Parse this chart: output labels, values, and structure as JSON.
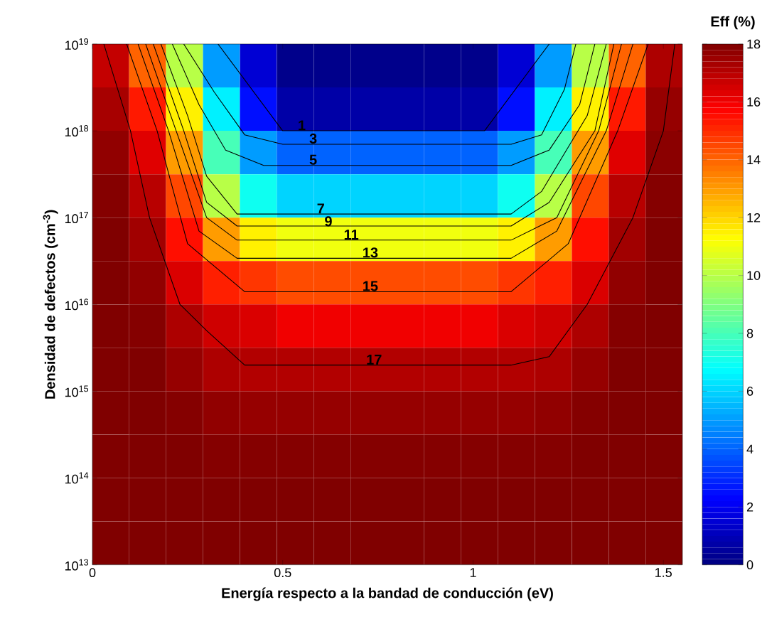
{
  "chart_data": {
    "type": "heatmap",
    "xlabel": "Energía respecto a la bandad de conducción (eV)",
    "ylabel": "Densidad de defectos (cm$^{-3}$)",
    "clabel": "Eff (%)",
    "log": "y",
    "xlim": [
      0,
      1.55
    ],
    "xticks": [
      0,
      0.5,
      1,
      1.5
    ],
    "ylim": [
      10000000000000.0,
      1e+19
    ],
    "yticks": [
      {
        "value": 10000000000000.0,
        "label": "10$^{13}$"
      },
      {
        "value": 100000000000000.0,
        "label": "10$^{14}$"
      },
      {
        "value": 1000000000000000.0,
        "label": "10$^{15}$"
      },
      {
        "value": 1e+16,
        "label": "10$^{16}$"
      },
      {
        "value": 1e+17,
        "label": "10$^{17}$"
      },
      {
        "value": 1e+18,
        "label": "10$^{18}$"
      },
      {
        "value": 1e+19,
        "label": "10$^{19}$"
      }
    ],
    "clim": [
      0,
      18
    ],
    "cticks": [
      0,
      2,
      4,
      6,
      8,
      10,
      12,
      14,
      16,
      18
    ],
    "x": [
      0.048,
      0.145,
      0.242,
      0.339,
      0.436,
      0.533,
      0.63,
      0.727,
      0.823,
      0.92,
      1.017,
      1.114,
      1.211,
      1.308,
      1.405,
      1.502
    ],
    "y": [
      5.62e+18,
      1.78e+18,
      5.62e+17,
      1.78e+17,
      5.62e+16,
      1.78e+16,
      5620000000000000.0,
      1780000000000000.0,
      562000000000000.0,
      178000000000000.0,
      56200000000000.0,
      17800000000000.0
    ],
    "cells": [
      [
        16.8,
        14,
        10,
        5,
        1.5,
        0.2,
        0.2,
        0.2,
        0.2,
        0.2,
        0.2,
        1.5,
        5,
        10,
        14,
        17.2
      ],
      [
        17.3,
        15.3,
        11.5,
        6.5,
        2.5,
        0.7,
        0.7,
        0.7,
        0.7,
        0.7,
        0.7,
        2.5,
        6.5,
        11.5,
        15.3,
        17.6
      ],
      [
        17.7,
        16.3,
        13,
        8,
        5,
        4,
        4,
        4,
        4,
        4,
        4,
        5,
        8,
        13,
        16.3,
        17.8
      ],
      [
        17.9,
        17,
        14.5,
        10,
        7,
        6,
        6,
        6,
        6,
        6,
        6,
        7,
        10,
        14.5,
        17,
        17.9
      ],
      [
        18,
        17.4,
        15.5,
        13,
        11.5,
        11,
        11,
        11,
        11,
        11,
        11,
        11.5,
        13,
        15.5,
        17.4,
        18
      ],
      [
        18,
        17.7,
        16.4,
        15.2,
        14.8,
        14.4,
        14.4,
        14.4,
        14.4,
        14.4,
        14.4,
        14.8,
        15.2,
        16.4,
        17.7,
        18
      ],
      [
        18,
        17.9,
        17.2,
        16.6,
        16.4,
        16,
        16,
        16,
        16,
        16,
        16,
        16.4,
        16.6,
        17.2,
        17.9,
        18
      ],
      [
        18,
        18,
        17.6,
        17.2,
        17.1,
        17.1,
        17.1,
        17.1,
        17.1,
        17.1,
        17.1,
        17.1,
        17.2,
        17.6,
        18,
        18
      ],
      [
        18,
        18,
        17.9,
        17.7,
        17.6,
        17.6,
        17.6,
        17.6,
        17.6,
        17.6,
        17.6,
        17.6,
        17.7,
        17.9,
        18,
        18
      ],
      [
        18,
        18,
        18,
        17.9,
        17.9,
        17.9,
        17.9,
        17.9,
        17.9,
        17.9,
        17.9,
        17.9,
        17.9,
        18,
        18,
        18
      ],
      [
        18,
        18,
        18,
        18,
        18,
        18,
        18,
        18,
        18,
        18,
        18,
        18,
        18,
        18,
        18,
        18
      ],
      [
        18,
        18,
        18,
        18,
        18,
        18,
        18,
        18,
        18,
        18,
        18,
        18,
        18,
        18,
        18,
        18
      ]
    ],
    "series": [
      {
        "type": "line",
        "color": "#000000",
        "x": [
          0.33,
          0.5,
          1.03,
          1.2
        ],
        "values": [
          1e+19,
          1e+18,
          1e+18,
          1e+19
        ]
      },
      {
        "type": "line",
        "color": "#000000",
        "x": [
          0.24,
          0.32,
          0.4,
          0.5,
          1.1,
          1.18,
          1.24,
          1.27
        ],
        "values": [
          1e+19,
          2.8e+18,
          9e+17,
          7e+17,
          7e+17,
          9e+17,
          3e+18,
          1e+19
        ]
      },
      {
        "type": "line",
        "color": "#000000",
        "x": [
          0.21,
          0.28,
          0.35,
          0.45,
          1.1,
          1.2,
          1.28,
          1.32
        ],
        "values": [
          1e+19,
          2e+18,
          6e+17,
          4e+17,
          4e+17,
          6e+17,
          2e+18,
          1e+19
        ]
      },
      {
        "type": "line",
        "color": "#000000",
        "x": [
          0.18,
          0.25,
          0.3,
          0.38,
          1.1,
          1.18,
          1.3,
          1.35
        ],
        "values": [
          1e+19,
          1.5e+18,
          3e+17,
          1.1e+17,
          1.1e+17,
          2e+17,
          1.5e+18,
          1e+19
        ]
      },
      {
        "type": "line",
        "color": "#000000",
        "x": [
          0.16,
          0.24,
          0.3,
          0.38,
          1.1,
          1.2,
          1.32,
          1.37
        ],
        "values": [
          1e+19,
          1e+18,
          1.5e+17,
          8e+16,
          8e+16,
          1.5e+17,
          1e+18,
          1e+19
        ]
      },
      {
        "type": "line",
        "color": "#000000",
        "x": [
          0.14,
          0.22,
          0.3,
          0.38,
          1.1,
          1.22,
          1.33,
          1.39
        ],
        "values": [
          1e+19,
          1e+18,
          1e+17,
          5.5e+16,
          5.5e+16,
          1e+17,
          1e+18,
          1e+19
        ]
      },
      {
        "type": "line",
        "color": "#000000",
        "x": [
          0.12,
          0.2,
          0.28,
          0.38,
          1.1,
          1.22,
          1.35,
          1.42
        ],
        "values": [
          1e+19,
          1e+18,
          7e+16,
          3.4e+16,
          3.4e+16,
          7e+16,
          1e+18,
          1e+19
        ]
      },
      {
        "type": "line",
        "color": "#000000",
        "x": [
          0.09,
          0.17,
          0.25,
          0.4,
          1.1,
          1.25,
          1.38,
          1.46
        ],
        "values": [
          1e+19,
          1e+18,
          5e+16,
          1.4e+16,
          1.4e+16,
          5e+16,
          1e+18,
          1e+19
        ]
      },
      {
        "type": "line",
        "color": "#000000",
        "x": [
          0.03,
          0.1,
          0.15,
          0.23,
          0.3,
          0.4,
          1.1,
          1.2,
          1.3,
          1.42,
          1.5,
          1.53
        ],
        "values": [
          1e+19,
          1e+18,
          1e+17,
          1e+16,
          5000000000000000.0,
          2000000000000000.0,
          2000000000000000.0,
          2500000000000000.0,
          1e+16,
          1e+17,
          1e+18,
          1e+19
        ]
      }
    ],
    "annotations": [
      {
        "text": "1",
        "x": 0.55,
        "y": 1e+18
      },
      {
        "text": "3",
        "x": 0.58,
        "y": 7e+17
      },
      {
        "text": "5",
        "x": 0.58,
        "y": 4e+17
      },
      {
        "text": "7",
        "x": 0.6,
        "y": 1.1e+17
      },
      {
        "text": "9",
        "x": 0.62,
        "y": 7.8e+16
      },
      {
        "text": "11",
        "x": 0.68,
        "y": 5.5e+16
      },
      {
        "text": "13",
        "x": 0.73,
        "y": 3.4e+16
      },
      {
        "text": "15",
        "x": 0.73,
        "y": 1.4e+16
      },
      {
        "text": "17",
        "x": 0.74,
        "y": 2000000000000000.0
      }
    ]
  }
}
